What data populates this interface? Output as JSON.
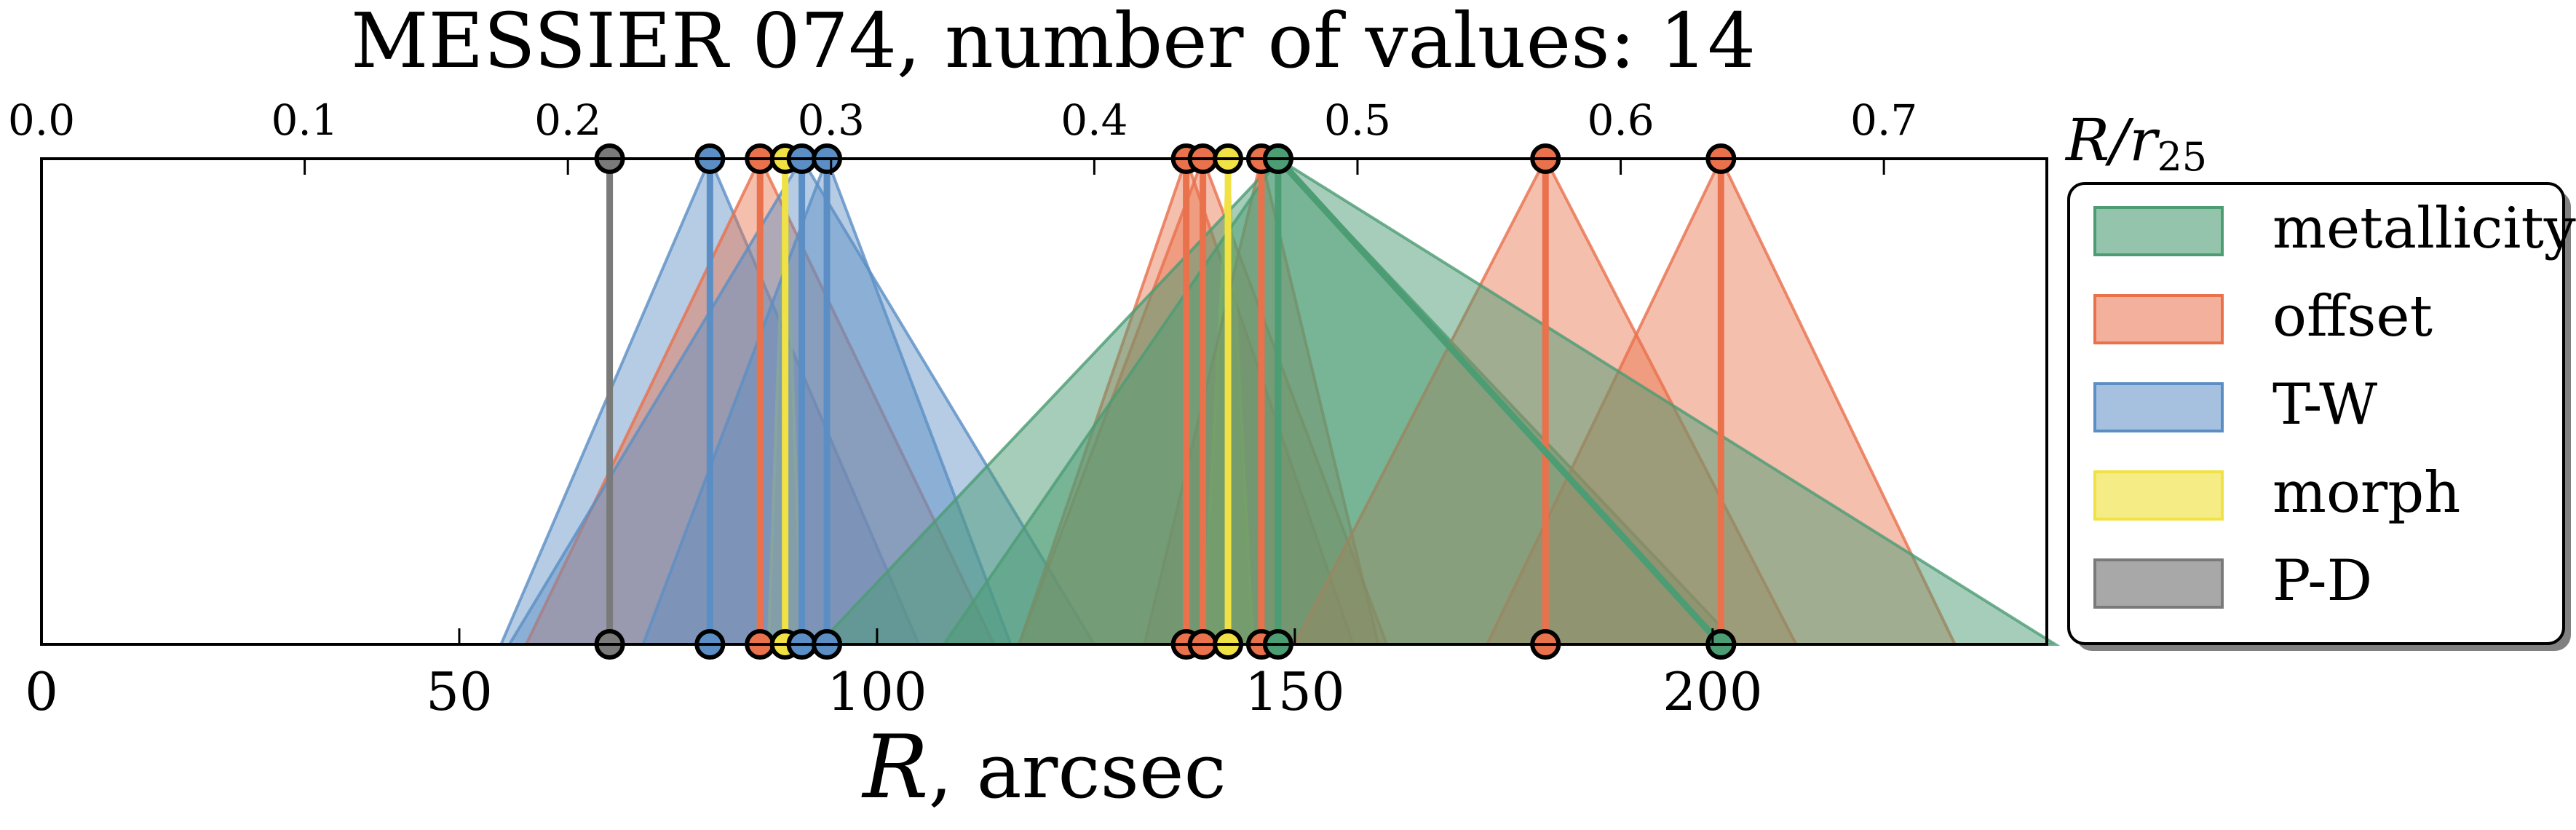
{
  "chart_data": {
    "type": "area",
    "title": "MESSIER 074, number of values: 14",
    "xlabel_main": "R",
    "xlabel_unit": ", arcsec",
    "top_axis_label": "R/r25",
    "top_axis_label_parts": {
      "base": "R/r",
      "sub": "25"
    },
    "xlim": [
      0,
      240
    ],
    "x_ticks": [
      0,
      50,
      100,
      150,
      200
    ],
    "top_ticks": [
      0.0,
      0.1,
      0.2,
      0.3,
      0.4,
      0.5,
      0.6,
      0.7
    ],
    "top_tick_labels": [
      "0.0",
      "0.1",
      "0.2",
      "0.3",
      "0.4",
      "0.5",
      "0.6",
      "0.7"
    ],
    "arcsec_per_r25_unit": 315,
    "legend_position": "right",
    "series": [
      {
        "name": "metallicity",
        "color": "#4c9c74",
        "fill_opacity": 0.5
      },
      {
        "name": "offset",
        "color": "#e9714c",
        "fill_opacity": 0.45
      },
      {
        "name": "T-W",
        "color": "#5b8ec4",
        "fill_opacity": 0.45
      },
      {
        "name": "morph",
        "color": "#f0e244",
        "fill_opacity": 0.55
      },
      {
        "name": "P-D",
        "color": "#7a7a7a",
        "fill_opacity": 0.55
      }
    ],
    "values": [
      {
        "series": "P-D",
        "top": 68,
        "bottom": 68,
        "spread": 0
      },
      {
        "series": "T-W",
        "top": 80,
        "bottom": 80,
        "spread": 25
      },
      {
        "series": "offset",
        "top": 86,
        "bottom": 86,
        "spread": 28
      },
      {
        "series": "morph",
        "top": 89,
        "bottom": 89,
        "spread": 2
      },
      {
        "series": "T-W",
        "top": 91,
        "bottom": 91,
        "spread": 35
      },
      {
        "series": "T-W",
        "top": 94,
        "bottom": 94,
        "spread": 22
      },
      {
        "series": "offset",
        "top": 137,
        "bottom": 137,
        "spread": 20
      },
      {
        "series": "offset",
        "top": 139,
        "bottom": 139,
        "spread": 22
      },
      {
        "series": "morph",
        "top": 142,
        "bottom": 142,
        "spread": 3
      },
      {
        "series": "offset",
        "top": 146,
        "bottom": 146,
        "spread": 14
      },
      {
        "series": "metallicity",
        "top": 148,
        "bottom": 148,
        "spread": 55
      },
      {
        "series": "offset",
        "top": 180,
        "bottom": 180,
        "spread": 30
      },
      {
        "series": "offset",
        "top": 201,
        "bottom": 201,
        "spread": 28
      },
      {
        "series": "metallicity",
        "top": 148,
        "bottom": 201,
        "spread": 40
      }
    ]
  }
}
